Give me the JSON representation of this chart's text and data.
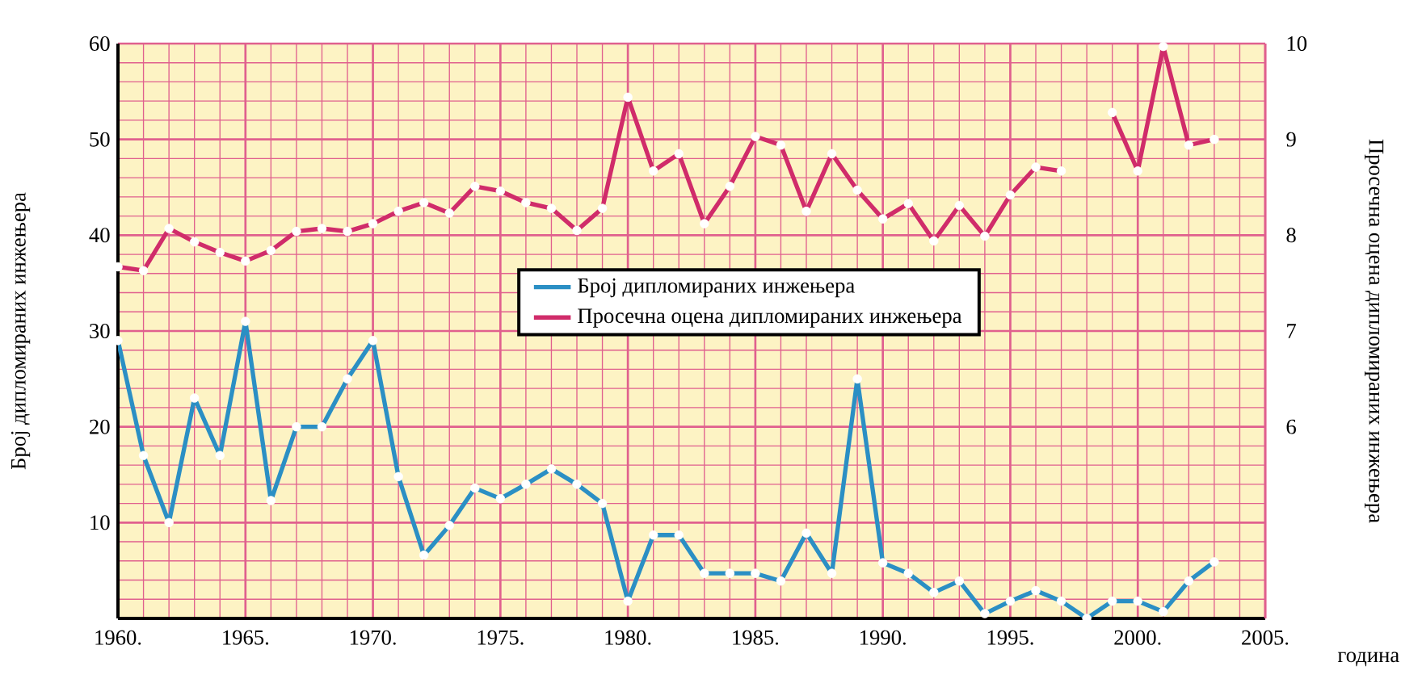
{
  "chart_data": {
    "type": "line",
    "xlabel": "година",
    "ylabel": "Број дипломираних инжењера",
    "y2label": "Просечна оцена дипломираних инжењера",
    "x": [
      1960,
      1961,
      1962,
      1963,
      1964,
      1965,
      1966,
      1967,
      1968,
      1969,
      1970,
      1971,
      1972,
      1973,
      1974,
      1975,
      1976,
      1977,
      1978,
      1979,
      1980,
      1981,
      1982,
      1983,
      1984,
      1985,
      1986,
      1987,
      1988,
      1989,
      1990,
      1991,
      1992,
      1993,
      1994,
      1995,
      1996,
      1997,
      1998,
      1999,
      2000,
      2001,
      2002,
      2003
    ],
    "series": [
      {
        "name": "Број дипломираних инжењера",
        "color": "#2b8fc4",
        "axis": "y",
        "values": [
          29,
          17,
          10,
          23,
          17,
          31,
          12.3,
          20,
          20,
          25,
          29,
          14.8,
          6.6,
          9.7,
          13.6,
          12.5,
          14,
          15.6,
          14,
          12,
          1.8,
          8.7,
          8.7,
          4.7,
          4.7,
          4.7,
          3.9,
          8.9,
          4.7,
          25,
          5.8,
          4.7,
          2.7,
          3.9,
          0.5,
          1.8,
          2.9,
          1.8,
          0,
          1.8,
          1.8,
          0.7,
          3.9,
          5.9
        ]
      },
      {
        "name": "Просечна оцена дипломираних инжењера",
        "color": "#d02c6a",
        "axis": "y2",
        "values": [
          7.67,
          7.63,
          8.07,
          7.93,
          7.82,
          7.73,
          7.84,
          8.04,
          8.07,
          8.04,
          8.12,
          8.25,
          8.34,
          8.23,
          8.51,
          8.46,
          8.34,
          8.28,
          8.05,
          8.28,
          9.44,
          8.67,
          8.85,
          8.12,
          8.51,
          9.03,
          8.94,
          8.25,
          8.85,
          8.47,
          8.17,
          8.33,
          7.94,
          8.31,
          7.99,
          8.42,
          8.71,
          8.67,
          null,
          9.28,
          8.67,
          9.97,
          8.94,
          9.0
        ]
      }
    ],
    "xlim": [
      1960,
      2005
    ],
    "xticks": [
      {
        "value": 1960,
        "label": "1960."
      },
      {
        "value": 1965,
        "label": "1965."
      },
      {
        "value": 1970,
        "label": "1970."
      },
      {
        "value": 1975,
        "label": "1975."
      },
      {
        "value": 1980,
        "label": "1980."
      },
      {
        "value": 1985,
        "label": "1985."
      },
      {
        "value": 1990,
        "label": "1990."
      },
      {
        "value": 1995,
        "label": "1995."
      },
      {
        "value": 2000,
        "label": "2000."
      },
      {
        "value": 2005,
        "label": "2005."
      }
    ],
    "ylim": [
      0,
      60
    ],
    "yticks": [
      10,
      20,
      30,
      40,
      50,
      60
    ],
    "y2lim": [
      4,
      10
    ],
    "y2ticks": [
      6,
      7,
      8,
      9,
      10
    ],
    "grid": true,
    "legend": "center",
    "marker": "circle",
    "line_style": "solid"
  }
}
